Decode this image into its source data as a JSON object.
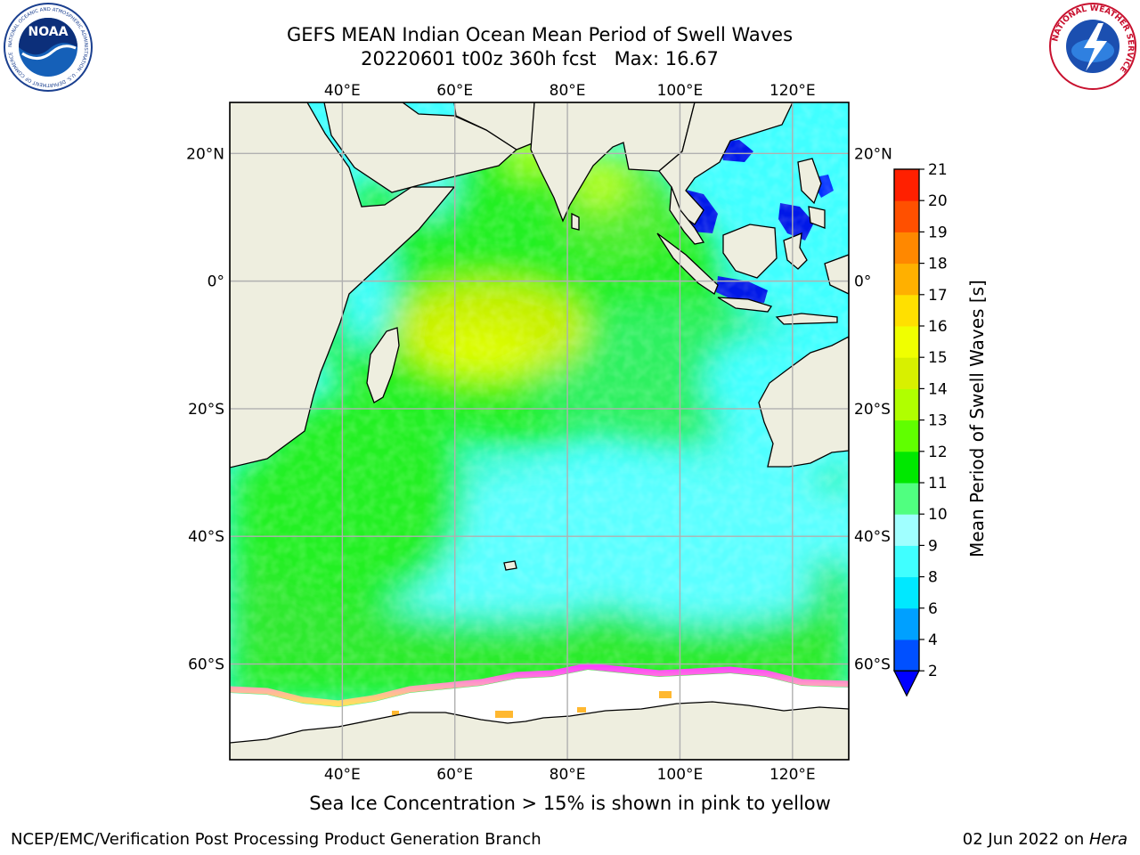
{
  "title": {
    "line1": "GEFS MEAN Indian Ocean Mean Period of Swell Waves",
    "line2": "20220601 t00z 360h fcst   Max: 16.67"
  },
  "map": {
    "lon_labels": [
      "40°E",
      "60°E",
      "80°E",
      "100°E",
      "120°E"
    ],
    "lat_labels": [
      "20°N",
      "0°",
      "20°S",
      "40°S",
      "60°S"
    ],
    "lon_range": [
      20,
      130
    ],
    "lat_range": [
      -75,
      28
    ],
    "colors": {
      "land": "#eeeedf",
      "ice": "#ffffff",
      "grid": "#b0b0b0"
    }
  },
  "colorbar": {
    "title": "Mean Period of Swell Waves [s]",
    "ticks": [
      "2",
      "4",
      "6",
      "8",
      "9",
      "10",
      "11",
      "12",
      "13",
      "14",
      "15",
      "16",
      "17",
      "18",
      "19",
      "20",
      "21"
    ],
    "colors": [
      "#0050ff",
      "#00a0ff",
      "#00e8ff",
      "#40ffff",
      "#a0ffff",
      "#50ff80",
      "#00e800",
      "#60ff00",
      "#b0ff00",
      "#d8f000",
      "#f0ff00",
      "#ffe000",
      "#ffb000",
      "#ff8800",
      "#ff5000",
      "#ff2000"
    ],
    "extend_color": "#0000ff"
  },
  "note": "Sea Ice Concentration > 15% is shown in pink to yellow",
  "footer": {
    "left": "NCEP/EMC/Verification Post Processing Product Generation Branch",
    "right_date": "02 Jun 2022 on ",
    "right_machine": "Hera"
  },
  "logos": {
    "noaa": {
      "text": "NOAA",
      "ring_text": "NATIONAL OCEANIC AND ATMOSPHERIC ADMINISTRATION · U.S. DEPARTMENT OF COMMERCE"
    },
    "nws": {
      "ring_text": "NATIONAL WEATHER SERVICE"
    }
  }
}
